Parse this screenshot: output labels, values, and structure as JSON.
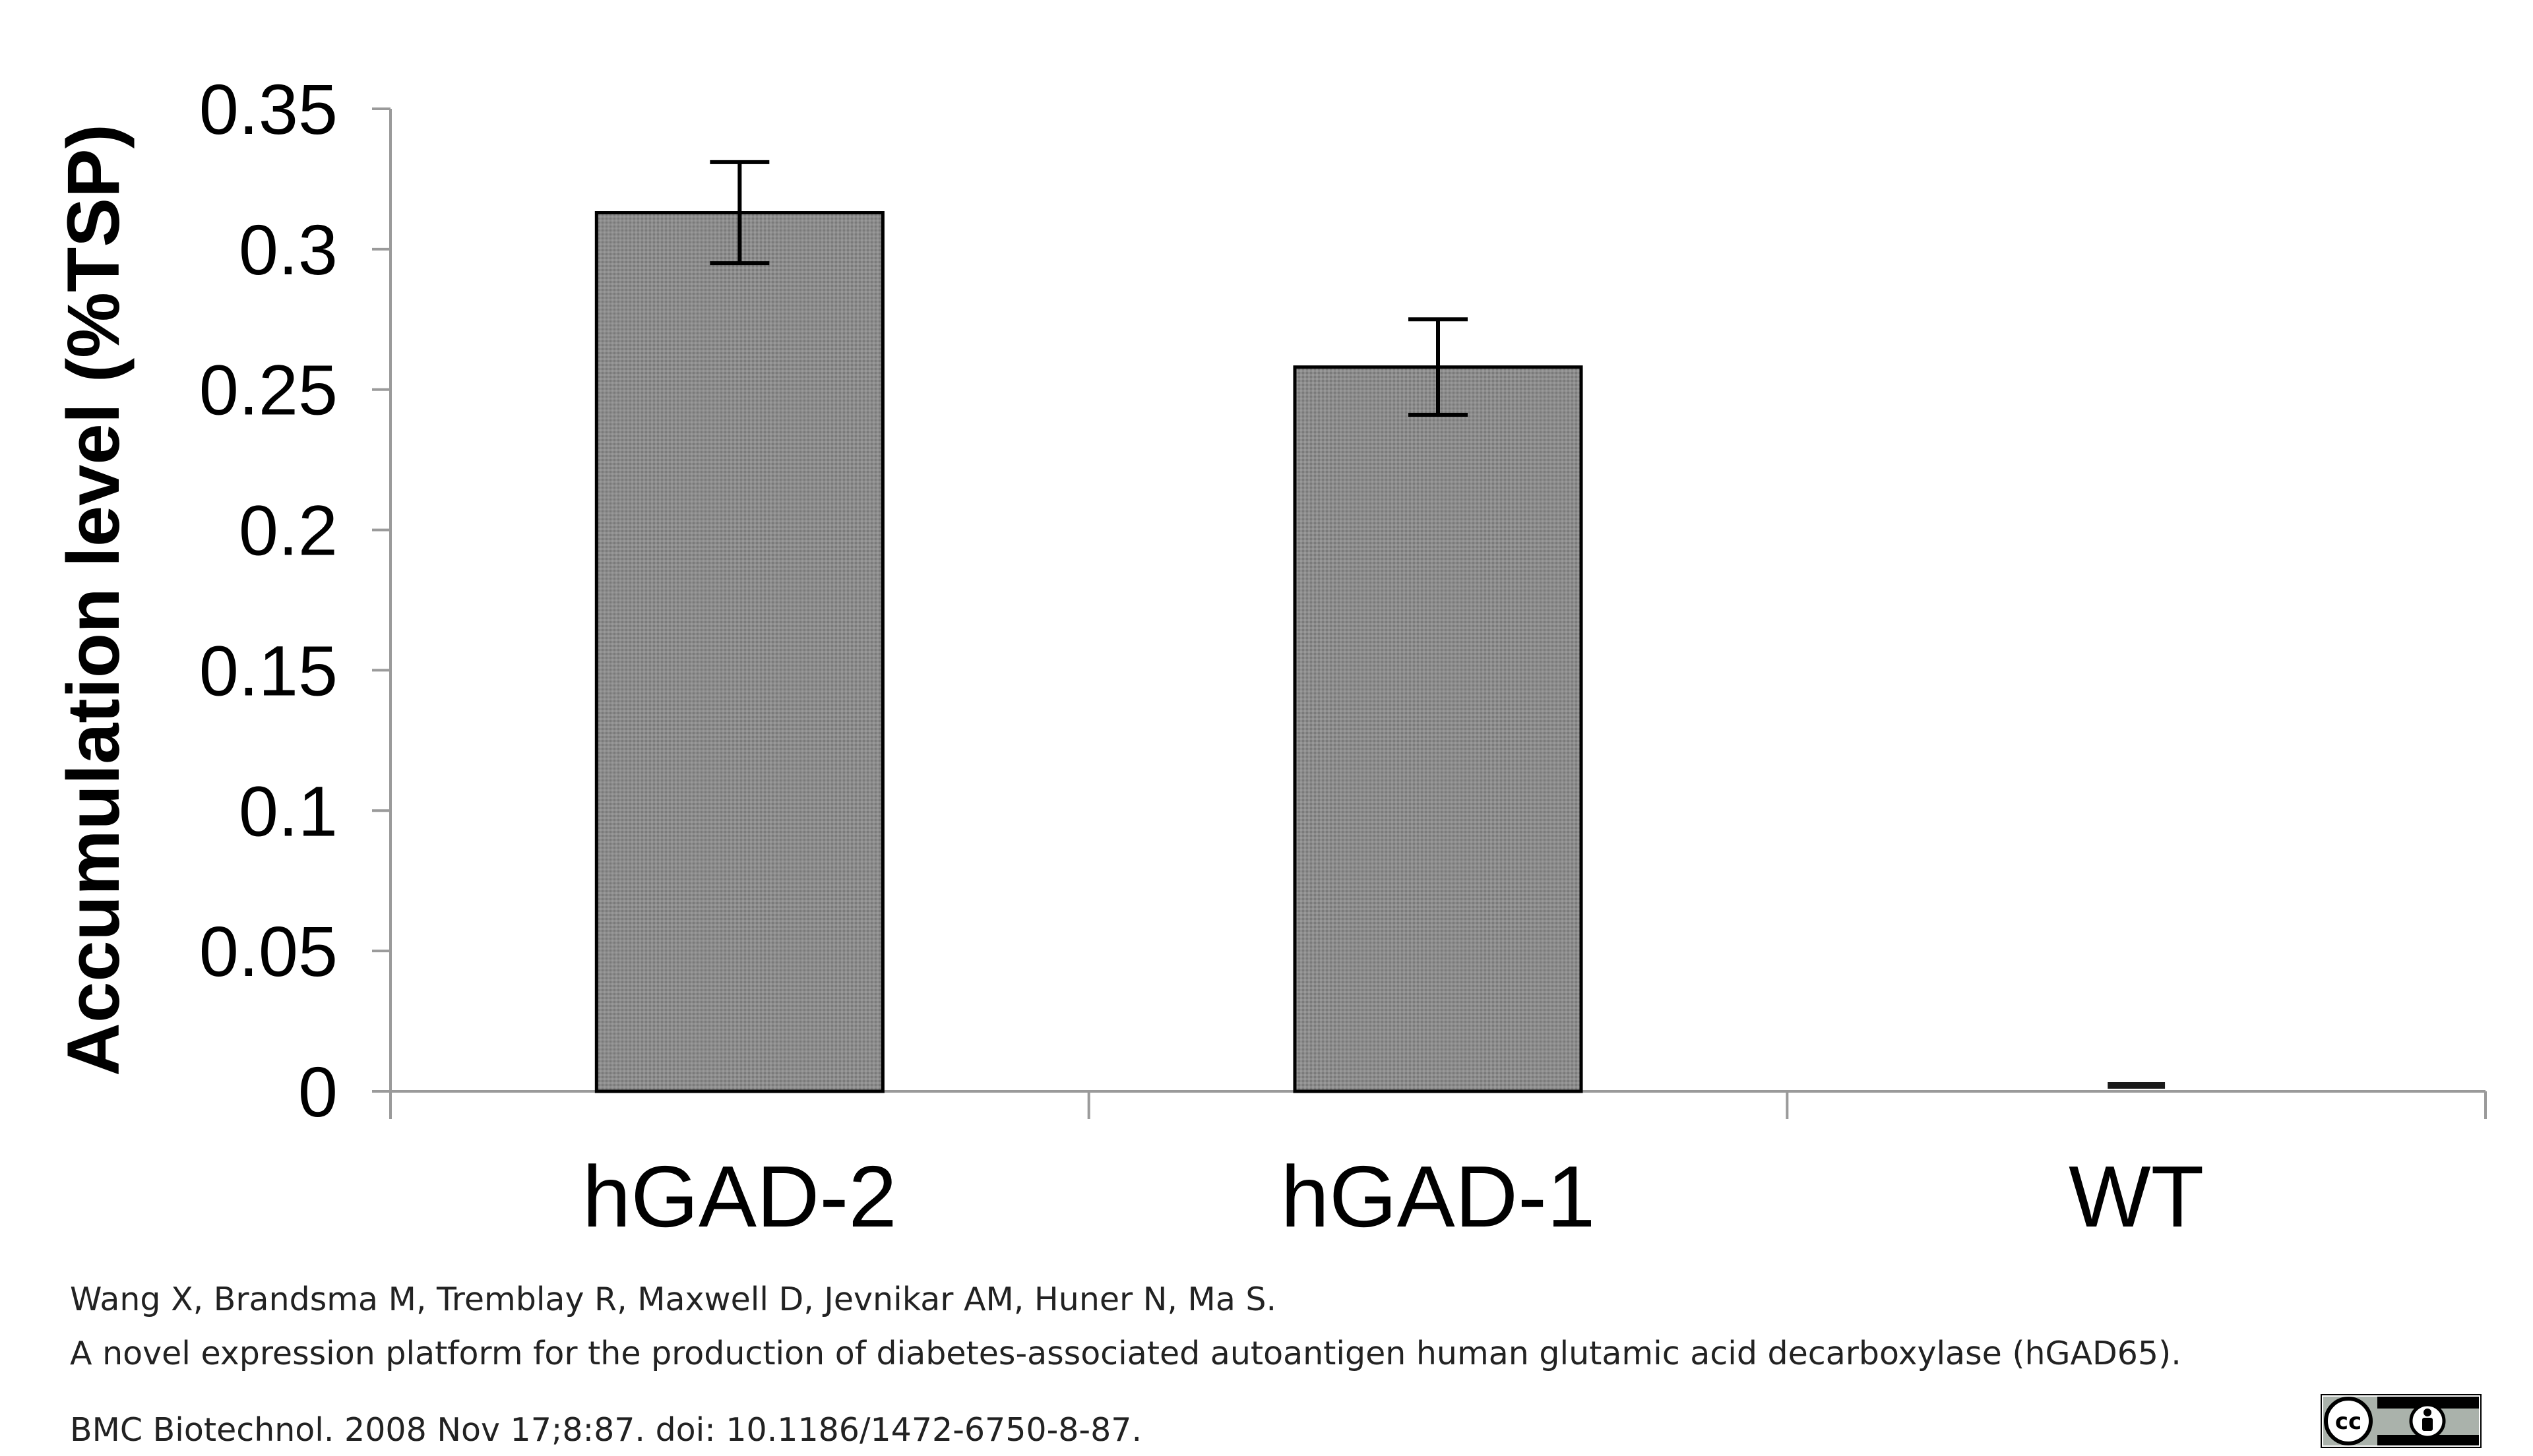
{
  "chart_data": {
    "type": "bar",
    "categories": [
      "hGAD-2",
      "hGAD-1",
      "WT"
    ],
    "values": [
      0.313,
      0.258,
      0.002
    ],
    "error": [
      0.018,
      0.017,
      0.0
    ],
    "title": "",
    "xlabel": "",
    "ylabel": "Accumulation level (%TSP)",
    "ylim": [
      0,
      0.35
    ],
    "yticks": [
      0,
      0.05,
      0.1,
      0.15,
      0.2,
      0.25,
      0.3,
      0.35
    ],
    "ytick_labels": [
      "0",
      "0.05",
      "0.1",
      "0.15",
      "0.2",
      "0.25",
      "0.3",
      "0.35"
    ],
    "grid": false,
    "legend": "none",
    "bar_color": "#8a8a8a"
  },
  "citation": {
    "authors": "Wang X, Brandsma M, Tremblay R, Maxwell D, Jevnikar AM, Huner N, Ma S.",
    "title": "A novel expression platform for the production of diabetes-associated autoantigen human glutamic acid decarboxylase (hGAD65).",
    "journal": "BMC Biotechnol. 2008 Nov 17;8:87. doi: 10.1186/1472-6750-8-87."
  },
  "license_badge": {
    "icon": "cc-by-license-icon"
  }
}
